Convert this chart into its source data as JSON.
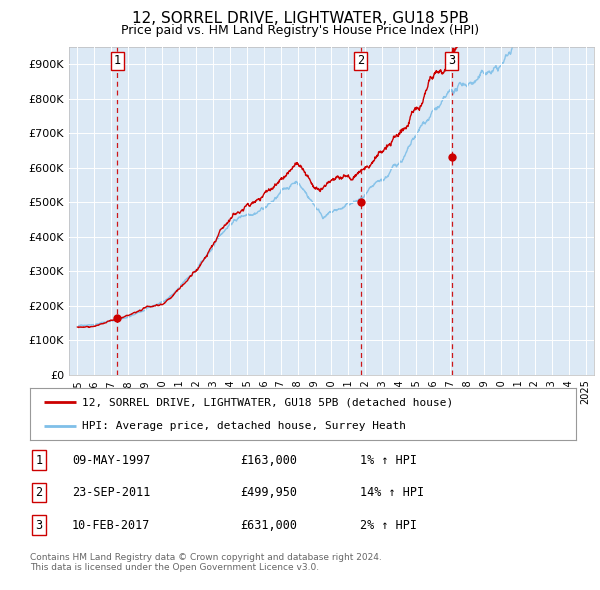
{
  "title": "12, SORREL DRIVE, LIGHTWATER, GU18 5PB",
  "subtitle": "Price paid vs. HM Land Registry's House Price Index (HPI)",
  "ylim": [
    0,
    950000
  ],
  "yticks": [
    0,
    100000,
    200000,
    300000,
    400000,
    500000,
    600000,
    700000,
    800000,
    900000
  ],
  "ytick_labels": [
    "£0",
    "£100K",
    "£200K",
    "£300K",
    "£400K",
    "£500K",
    "£600K",
    "£700K",
    "£800K",
    "£900K"
  ],
  "xlim_start": 1994.5,
  "xlim_end": 2025.5,
  "purchases": [
    {
      "num": 1,
      "date": "09-MAY-1997",
      "year": 1997.36,
      "price": 163000,
      "pct": "1% ↑ HPI"
    },
    {
      "num": 2,
      "date": "23-SEP-2011",
      "year": 2011.73,
      "price": 499950,
      "pct": "14% ↑ HPI"
    },
    {
      "num": 3,
      "date": "10-FEB-2017",
      "year": 2017.11,
      "price": 631000,
      "pct": "2% ↑ HPI"
    }
  ],
  "legend_line1": "12, SORREL DRIVE, LIGHTWATER, GU18 5PB (detached house)",
  "legend_line2": "HPI: Average price, detached house, Surrey Heath",
  "footer1": "Contains HM Land Registry data © Crown copyright and database right 2024.",
  "footer2": "This data is licensed under the Open Government Licence v3.0.",
  "hpi_color": "#7fbfe8",
  "price_color": "#cc0000",
  "dashed_color": "#cc0000",
  "plot_bg_color": "#dce9f5",
  "hpi_base_1995": 140000,
  "prop_base_1995": 130000
}
